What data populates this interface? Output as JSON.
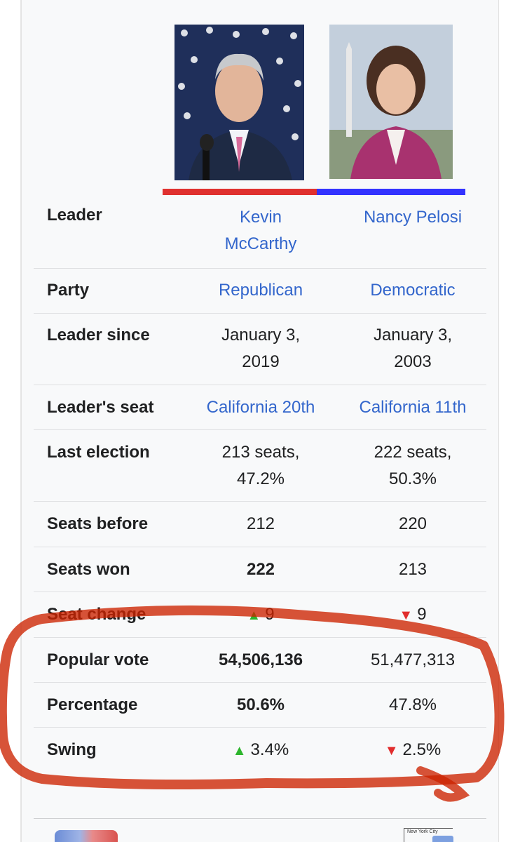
{
  "infobox": {
    "candidates": [
      {
        "name_line1": "Kevin",
        "name_line2": "McCarthy",
        "party_color": "#e0312f",
        "photo": "portrait-kevin-mccarthy"
      },
      {
        "name": "Nancy Pelosi",
        "party_color": "#3333ff",
        "photo": "portrait-nancy-pelosi"
      }
    ],
    "rows": {
      "leader": {
        "label": "Leader"
      },
      "party": {
        "label": "Party",
        "c1": "Republican",
        "c2": "Democratic"
      },
      "leader_since": {
        "label": "Leader since",
        "c1_line1": "January 3,",
        "c1_line2": "2019",
        "c2_line1": "January 3,",
        "c2_line2": "2003"
      },
      "leaders_seat": {
        "label": "Leader's seat",
        "c1": "California 20th",
        "c2": "California 11th"
      },
      "last_election": {
        "label": "Last election",
        "c1_line1": "213 seats,",
        "c1_line2": "47.2%",
        "c2_line1": "222 seats,",
        "c2_line2": "50.3%"
      },
      "seats_before": {
        "label": "Seats before",
        "c1": "212",
        "c2": "220"
      },
      "seats_won": {
        "label": "Seats won",
        "c1": "222",
        "c2": "213"
      },
      "seat_change": {
        "label": "Seat change",
        "c1": "9",
        "c2": "9",
        "c1_arrow": "▲",
        "c2_arrow": "▼"
      },
      "popular_vote": {
        "label": "Popular vote",
        "c1": "54,506,136",
        "c2": "51,477,313"
      },
      "percentage": {
        "label": "Percentage",
        "c1": "50.6%",
        "c2": "47.8%"
      },
      "swing": {
        "label": "Swing",
        "c1": "3.4%",
        "c2": "2.5%",
        "c1_arrow": "▲",
        "c2_arrow": "▼"
      }
    },
    "map_inset_label": "New York City"
  },
  "colors": {
    "link": "#3366cc",
    "republican": "#e0312f",
    "democratic": "#3333ff",
    "gain": "#2db52d",
    "loss": "#e12d2d",
    "annotation": "#cc2200"
  }
}
